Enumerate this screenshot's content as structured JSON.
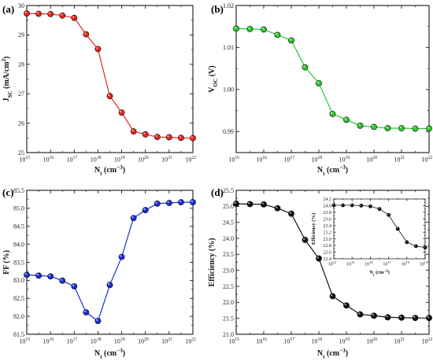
{
  "chart_data": [
    {
      "id": "a",
      "type": "line",
      "panel_label": "(a)",
      "xlabel": "N_t (cm^-3)",
      "xlabel_parts": {
        "main": "N",
        "sub": "t",
        "unit": " (cm",
        "sup": "−3",
        "close": ")"
      },
      "ylabel_parts": {
        "main": "J",
        "sub": "SC",
        "unit": " (mA/cm",
        "sup": "2",
        "close": ")"
      },
      "x_scale": "log10",
      "xlim": [
        1000000000000000.0,
        1e+22
      ],
      "ylim": [
        25,
        30
      ],
      "x_ticks": [
        1000000000000000.0,
        1e+16,
        1e+17,
        1e+18,
        1e+19,
        1e+20,
        1e+21,
        1e+22
      ],
      "x_tick_labels": [
        "10",
        "10",
        "10",
        "10",
        "10",
        "10",
        "10",
        "10"
      ],
      "x_tick_exponents": [
        "15",
        "16",
        "17",
        "18",
        "19",
        "20",
        "21",
        "22"
      ],
      "y_ticks": [
        25,
        26,
        27,
        28,
        29,
        30
      ],
      "y_tick_labels": [
        "25",
        "26",
        "27",
        "28",
        "29",
        "30"
      ],
      "series": [
        {
          "color": "#e8241c",
          "x": [
            1000000000000000.0,
            3160000000000000.0,
            1e+16,
            3.16e+16,
            1e+17,
            3.16e+17,
            1e+18,
            3.16e+18,
            1e+19,
            3.16e+19,
            1e+20,
            3.16e+20,
            1e+21,
            3.16e+21,
            1e+22
          ],
          "y": [
            29.73,
            29.72,
            29.71,
            29.66,
            29.58,
            29.02,
            28.52,
            26.92,
            26.36,
            25.72,
            25.62,
            25.53,
            25.52,
            25.5,
            25.49
          ]
        }
      ]
    },
    {
      "id": "b",
      "type": "line",
      "panel_label": "(b)",
      "xlabel": "N_t (cm^-3)",
      "xlabel_parts": {
        "main": "N",
        "sub": "t",
        "unit": " (cm",
        "sup": "−3",
        "close": ")"
      },
      "ylabel_parts": {
        "main": "V",
        "sub": "OC",
        "unit": " (V)",
        "sup": "",
        "close": ""
      },
      "x_scale": "log10",
      "xlim": [
        1000000000000000.0,
        1e+22
      ],
      "ylim": [
        0.985,
        1.02
      ],
      "x_ticks": [
        1000000000000000.0,
        1e+16,
        1e+17,
        1e+18,
        1e+19,
        1e+20,
        1e+21,
        1e+22
      ],
      "x_tick_labels": [
        "10",
        "10",
        "10",
        "10",
        "10",
        "10",
        "10",
        "10"
      ],
      "x_tick_exponents": [
        "15",
        "16",
        "17",
        "18",
        "19",
        "20",
        "21",
        "22"
      ],
      "y_ticks": [
        0.99,
        1.0,
        1.01,
        1.02
      ],
      "y_tick_labels": [
        "0.99",
        "1.00",
        "1.01",
        "1.02"
      ],
      "series": [
        {
          "color": "#2ec82e",
          "x": [
            1000000000000000.0,
            3160000000000000.0,
            1e+16,
            3.16e+16,
            1e+17,
            3.16e+17,
            1e+18,
            3.16e+18,
            1e+19,
            3.16e+19,
            1e+20,
            3.16e+20,
            1e+21,
            3.16e+21,
            1e+22
          ],
          "y": [
            1.0145,
            1.0144,
            1.0143,
            1.013,
            1.0117,
            1.0053,
            1.0015,
            0.9942,
            0.9928,
            0.9914,
            0.9911,
            0.9908,
            0.9908,
            0.9907,
            0.9907
          ]
        }
      ]
    },
    {
      "id": "c",
      "type": "line",
      "panel_label": "(c)",
      "xlabel": "N_t (cm^-3)",
      "xlabel_parts": {
        "main": "N",
        "sub": "t",
        "unit": " (cm",
        "sup": "−3",
        "close": ")"
      },
      "ylabel_parts": {
        "main": "FF (%)",
        "sub": "",
        "unit": "",
        "sup": "",
        "close": ""
      },
      "x_scale": "log10",
      "xlim": [
        1000000000000000.0,
        1e+22
      ],
      "ylim": [
        81.5,
        85.5
      ],
      "x_ticks": [
        1000000000000000.0,
        1e+16,
        1e+17,
        1e+18,
        1e+19,
        1e+20,
        1e+21,
        1e+22
      ],
      "x_tick_labels": [
        "10",
        "10",
        "10",
        "10",
        "10",
        "10",
        "10",
        "10"
      ],
      "x_tick_exponents": [
        "15",
        "16",
        "17",
        "18",
        "19",
        "20",
        "21",
        "22"
      ],
      "y_ticks": [
        81.5,
        82.0,
        82.5,
        83.0,
        83.5,
        84.0,
        84.5,
        85.0,
        85.5
      ],
      "y_tick_labels": [
        "81.5",
        "82.0",
        "82.5",
        "83.0",
        "83.5",
        "84.0",
        "84.5",
        "85.0",
        "85.5"
      ],
      "series": [
        {
          "color": "#1a2fd6",
          "x": [
            1000000000000000.0,
            3160000000000000.0,
            1e+16,
            3.16e+16,
            1e+17,
            3.16e+17,
            1e+18,
            3.16e+18,
            1e+19,
            3.16e+19,
            1e+20,
            3.16e+20,
            1e+21,
            3.16e+21,
            1e+22
          ],
          "y": [
            83.15,
            83.13,
            83.11,
            82.99,
            82.83,
            82.11,
            81.87,
            82.87,
            83.65,
            84.73,
            84.95,
            85.13,
            85.15,
            85.17,
            85.17
          ]
        }
      ]
    },
    {
      "id": "d",
      "type": "line",
      "panel_label": "(d)",
      "xlabel": "N_t (cm^-3)",
      "xlabel_parts": {
        "main": "N",
        "sub": "t",
        "unit": " (cm",
        "sup": "−3",
        "close": ")"
      },
      "ylabel_parts": {
        "main": "Efficiency (%)",
        "sub": "",
        "unit": "",
        "sup": "",
        "close": ""
      },
      "x_scale": "log10",
      "xlim": [
        1000000000000000.0,
        1e+22
      ],
      "ylim": [
        21.0,
        25.5
      ],
      "x_ticks": [
        1000000000000000.0,
        1e+16,
        1e+17,
        1e+18,
        1e+19,
        1e+20,
        1e+21,
        1e+22
      ],
      "x_tick_labels": [
        "10",
        "10",
        "10",
        "10",
        "10",
        "10",
        "10",
        "10"
      ],
      "x_tick_exponents": [
        "15",
        "16",
        "17",
        "18",
        "19",
        "20",
        "21",
        "22"
      ],
      "y_ticks": [
        21.0,
        21.5,
        22.0,
        22.5,
        23.0,
        23.5,
        24.0,
        24.5,
        25.0,
        25.5
      ],
      "y_tick_labels": [
        "21.0",
        "21.5",
        "22.0",
        "22.5",
        "23.0",
        "23.5",
        "24.0",
        "24.5",
        "25.0",
        "25.5"
      ],
      "series": [
        {
          "color": "#111111",
          "x": [
            1000000000000000.0,
            3160000000000000.0,
            1e+16,
            3.16e+16,
            1e+17,
            3.16e+17,
            1e+18,
            3.16e+18,
            1e+19,
            3.16e+19,
            1e+20,
            3.16e+20,
            1e+21,
            3.16e+21,
            1e+22
          ],
          "y": [
            25.08,
            25.07,
            25.06,
            24.94,
            24.77,
            23.95,
            23.37,
            22.19,
            21.9,
            21.62,
            21.58,
            21.53,
            21.52,
            21.51,
            21.51
          ]
        }
      ],
      "inset": {
        "type": "line",
        "xlabel_parts": {
          "main": "N",
          "sub": "t",
          "unit": " (cm",
          "sup": "−3",
          "close": ")"
        },
        "ylabel_parts": {
          "main": "Efficiency (%)",
          "sub": "",
          "unit": "",
          "sup": "",
          "close": ""
        },
        "x_scale": "log10",
        "xlim": [
          1000000000000.0,
          1e+17
        ],
        "ylim": [
          22.4,
          24.2
        ],
        "x_ticks": [
          1000000000000.0,
          10000000000000.0,
          100000000000000.0,
          1000000000000000.0,
          1e+16,
          1e+17
        ],
        "x_tick_labels": [
          "10",
          "10",
          "10",
          "10",
          "10",
          "10"
        ],
        "x_tick_exponents": [
          "12",
          "13",
          "14",
          "15",
          "16",
          "17"
        ],
        "y_ticks": [
          22.4,
          22.6,
          22.8,
          23.0,
          23.2,
          23.4,
          23.6,
          23.8,
          24.0,
          24.2
        ],
        "y_tick_labels": [
          "22.4",
          "22.6",
          "22.8",
          "23.0",
          "23.2",
          "23.4",
          "23.6",
          "23.8",
          "24.0",
          "24.2"
        ],
        "series": [
          {
            "color": "#111111",
            "x": [
              1000000000000.0,
              3160000000000.0,
              10000000000000.0,
              31600000000000.0,
              100000000000000.0,
              316000000000000.0,
              1000000000000000.0,
              3160000000000000.0,
              1e+16,
              3.16e+16,
              1e+17
            ],
            "y": [
              24.01,
              24.01,
              24.01,
              24.0,
              23.98,
              23.9,
              23.72,
              23.3,
              22.9,
              22.78,
              22.74
            ]
          }
        ]
      }
    }
  ]
}
